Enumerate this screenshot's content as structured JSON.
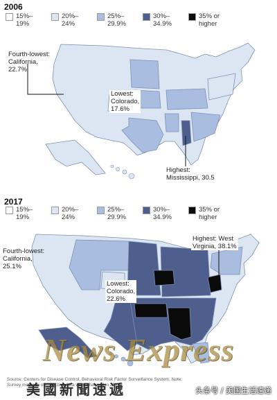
{
  "colors": {
    "c15_19": "#ffffff",
    "c20_24": "#dce6f3",
    "c25_29": "#a9bde0",
    "c30_34": "#4e5f8e",
    "c35_up": "#0b0b0b",
    "outline": "#7f8fb3"
  },
  "legend": [
    {
      "label": "15%–\n19%",
      "color": "#ffffff"
    },
    {
      "label": "20%–\n24%",
      "color": "#dce6f3"
    },
    {
      "label": "25%–\n29.9%",
      "color": "#a9bde0"
    },
    {
      "label": "30%–\n34.9%",
      "color": "#4e5f8e"
    },
    {
      "label": "35% or\nhigher",
      "color": "#0b0b0b"
    }
  ],
  "map2006": {
    "year": "2006",
    "fourth_lowest": "Fourth-lowest:\nCalifornia,\n22.7%",
    "lowest": "Lowest:\nColorado,\n17.6%",
    "highest": "Highest:\nMississippi, 30.5"
  },
  "map2017": {
    "year": "2017",
    "fourth_lowest": "Fourth-lowest:\nCalifornia,\n25.1%",
    "lowest": "Lowest:\nColorado,\n22.6%",
    "highest": "Highest: West\nVirginia, 38.1%"
  },
  "source": "Source: Centers for Disease Control, Behavioral Risk Factor Surveillance System. Note: Survey methods of collecting data were changed in 2011.",
  "watermark": "News Express",
  "cn_title": "美國新聞速遞",
  "credit": "头条号 / 美国生活速递"
}
